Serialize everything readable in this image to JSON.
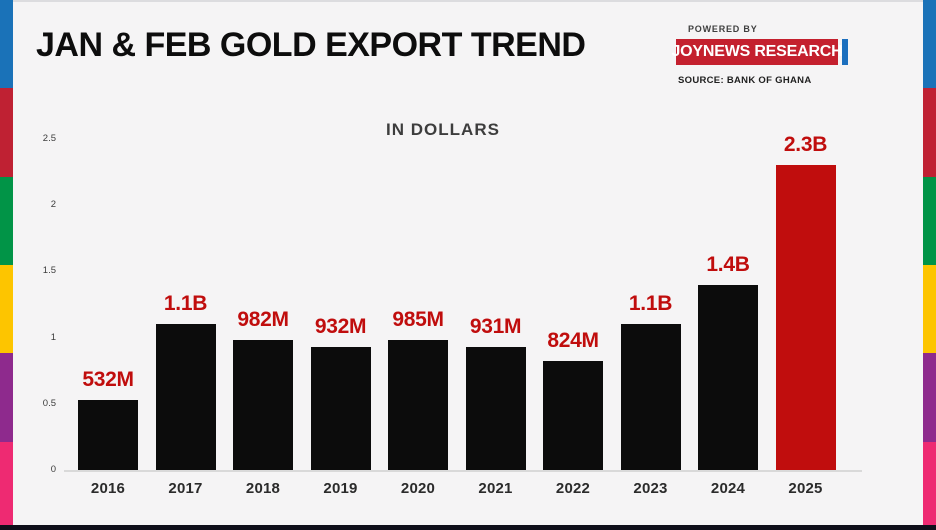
{
  "header": {
    "title": "JAN & FEB GOLD EXPORT TREND",
    "powered_by": "POWERED BY",
    "brand": "JOYNEWS RESEARCH",
    "source": "SOURCE: BANK OF GHANA"
  },
  "colors": {
    "background": "#f5f4f5",
    "title_text": "#0d0d0d",
    "subtitle_text": "#3d3d3d",
    "bar_default": "#0c0c0c",
    "bar_highlight": "#c00d0d",
    "value_label": "#c00d0d",
    "axis_text": "#3c3c3c",
    "category_text": "#2b2b2b",
    "axis_line": "#d9d9d9",
    "badge_bg": "#c4202e",
    "badge_text": "#ffffff",
    "badge_accent": "#1c6fbe",
    "powered_by_text": "#3f3f3f",
    "source_text": "#1f1f1f",
    "bottom_band": "#0f0f1a",
    "stripe_segments": [
      "#1a72b8",
      "#bf2133",
      "#019447",
      "#fdc500",
      "#8e2a8d",
      "#ee2a72"
    ]
  },
  "chart_data": {
    "type": "bar",
    "title": "IN DOLLARS",
    "categories": [
      "2016",
      "2017",
      "2018",
      "2019",
      "2020",
      "2021",
      "2022",
      "2023",
      "2024",
      "2025"
    ],
    "values_billions": [
      0.532,
      1.1,
      0.982,
      0.932,
      0.985,
      0.931,
      0.824,
      1.1,
      1.4,
      2.3
    ],
    "value_labels": [
      "532M",
      "1.1B",
      "982M",
      "932M",
      "985M",
      "931M",
      "824M",
      "1.1B",
      "1.4B",
      "2.3B"
    ],
    "y_ticks": [
      0,
      0.5,
      1,
      1.5,
      2,
      2.5
    ],
    "y_tick_labels": [
      "0",
      "0.5",
      "1",
      "1.5",
      "2",
      "2.5"
    ],
    "ylim": [
      0,
      2.5
    ],
    "grid": false,
    "legend_position": "none",
    "highlight_index": 9
  }
}
